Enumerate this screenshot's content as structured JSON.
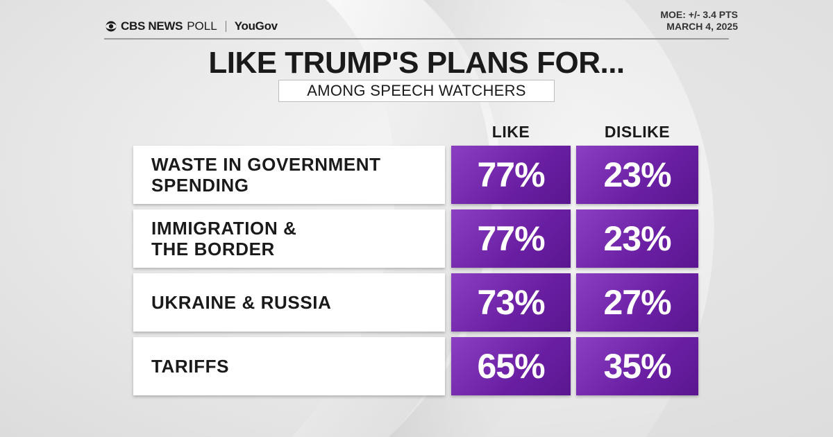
{
  "header": {
    "brand_cbs": "CBS NEWS",
    "brand_poll": "POLL",
    "brand_yougov": "YouGov",
    "moe": "MOE: +/- 3.4 PTS",
    "date": "MARCH 4, 2025"
  },
  "title": "LIKE TRUMP'S PLANS FOR...",
  "subtitle": "AMONG SPEECH WATCHERS",
  "columns": {
    "like": "LIKE",
    "dislike": "DISLIKE"
  },
  "colors": {
    "accent_purple": "#6a1fa3",
    "text": "#1a1a1a"
  },
  "chart_data": {
    "type": "table",
    "title": "LIKE TRUMP'S PLANS FOR...",
    "subtitle": "AMONG SPEECH WATCHERS",
    "columns": [
      "LIKE",
      "DISLIKE"
    ],
    "rows": [
      {
        "label": "WASTE IN GOVERNMENT SPENDING",
        "label_lines": [
          "WASTE IN GOVERNMENT",
          "SPENDING"
        ],
        "like": 77,
        "dislike": 23,
        "like_text": "77%",
        "dislike_text": "23%"
      },
      {
        "label": "IMMIGRATION & THE BORDER",
        "label_lines": [
          "IMMIGRATION &",
          "THE BORDER"
        ],
        "like": 77,
        "dislike": 23,
        "like_text": "77%",
        "dislike_text": "23%"
      },
      {
        "label": "UKRAINE & RUSSIA",
        "label_lines": [
          "UKRAINE & RUSSIA"
        ],
        "like": 73,
        "dislike": 27,
        "like_text": "73%",
        "dislike_text": "27%"
      },
      {
        "label": "TARIFFS",
        "label_lines": [
          "TARIFFS"
        ],
        "like": 65,
        "dislike": 35,
        "like_text": "65%",
        "dislike_text": "35%"
      }
    ]
  }
}
